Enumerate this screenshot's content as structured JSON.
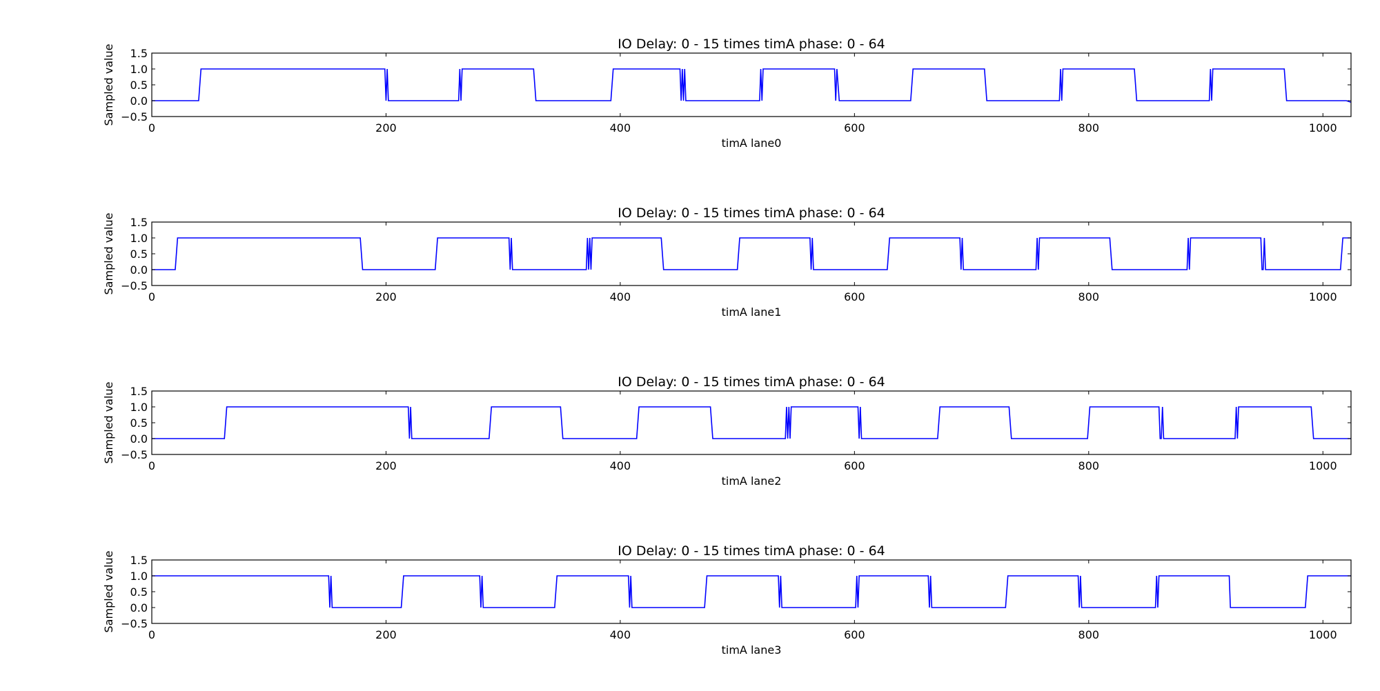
{
  "figure": {
    "background": "#ffffff",
    "line_color": "#0000ff"
  },
  "chart_data": [
    {
      "type": "line",
      "title": "IO Delay: 0 - 15 times timA phase: 0 - 64",
      "xlabel": "timA lane0",
      "ylabel": "Sampled value",
      "xlim": [
        0,
        1024
      ],
      "ylim": [
        -0.5,
        1.5
      ],
      "xticks": [
        0,
        200,
        400,
        600,
        800,
        1000
      ],
      "yticks": [
        -0.5,
        0.0,
        0.5,
        1.0,
        1.5
      ],
      "ytick_labels": [
        "−0.5",
        "0.0",
        "0.5",
        "1.0",
        "1.5"
      ],
      "grid": false,
      "series": [
        {
          "x": [
            0,
            40,
            42,
            199,
            200,
            201,
            202,
            203,
            262,
            263,
            264,
            265,
            326,
            328,
            392,
            394,
            451,
            452,
            453,
            454,
            455,
            456,
            519,
            520,
            521,
            522,
            583,
            584,
            585,
            587,
            648,
            650,
            711,
            713,
            775,
            776,
            777,
            778,
            839,
            841,
            903,
            904,
            905,
            906,
            967,
            969,
            1020,
            1024
          ],
          "y": [
            0,
            0,
            1,
            1,
            0,
            1,
            0,
            0,
            0,
            1,
            0,
            1,
            1,
            0,
            0,
            1,
            1,
            0,
            1,
            0,
            1,
            0,
            0,
            1,
            0,
            1,
            1,
            0,
            1,
            0,
            0,
            1,
            1,
            0,
            0,
            1,
            0,
            1,
            1,
            0,
            0,
            1,
            0,
            1,
            1,
            0,
            0,
            -0.05
          ]
        }
      ]
    },
    {
      "type": "line",
      "title": "IO Delay: 0 - 15 times timA phase: 0 - 64",
      "xlabel": "timA lane1",
      "ylabel": "Sampled value",
      "xlim": [
        0,
        1024
      ],
      "ylim": [
        -0.5,
        1.5
      ],
      "xticks": [
        0,
        200,
        400,
        600,
        800,
        1000
      ],
      "yticks": [
        -0.5,
        0.0,
        0.5,
        1.0,
        1.5
      ],
      "ytick_labels": [
        "−0.5",
        "0.0",
        "0.5",
        "1.0",
        "1.5"
      ],
      "grid": false,
      "series": [
        {
          "x": [
            0,
            20,
            22,
            178,
            180,
            242,
            244,
            305,
            306,
            307,
            308,
            309,
            371,
            372,
            373,
            374,
            375,
            376,
            435,
            437,
            500,
            502,
            562,
            563,
            564,
            565,
            566,
            628,
            630,
            690,
            691,
            692,
            693,
            694,
            755,
            756,
            757,
            758,
            759,
            818,
            820,
            884,
            885,
            886,
            887,
            947,
            948,
            949,
            950,
            951,
            1015,
            1017,
            1024
          ],
          "y": [
            0,
            0,
            1,
            1,
            0,
            0,
            1,
            1,
            0,
            1,
            0,
            0,
            0,
            1,
            0,
            1,
            0,
            1,
            1,
            0,
            0,
            1,
            1,
            0,
            1,
            0,
            0,
            0,
            1,
            1,
            0,
            1,
            0,
            0,
            0,
            1,
            0,
            1,
            1,
            1,
            0,
            0,
            1,
            0,
            1,
            1,
            0,
            0,
            1,
            0,
            0,
            1,
            1
          ]
        }
      ]
    },
    {
      "type": "line",
      "title": "IO Delay: 0 - 15 times timA phase: 0 - 64",
      "xlabel": "timA lane2",
      "ylabel": "Sampled value",
      "xlim": [
        0,
        1024
      ],
      "ylim": [
        -0.5,
        1.5
      ],
      "xticks": [
        0,
        200,
        400,
        600,
        800,
        1000
      ],
      "yticks": [
        -0.5,
        0.0,
        0.5,
        1.0,
        1.5
      ],
      "ytick_labels": [
        "−0.5",
        "0.0",
        "0.5",
        "1.0",
        "1.5"
      ],
      "grid": false,
      "series": [
        {
          "x": [
            0,
            62,
            64,
            219,
            220,
            221,
            222,
            223,
            288,
            290,
            349,
            351,
            414,
            416,
            477,
            479,
            541,
            542,
            543,
            544,
            545,
            546,
            603,
            604,
            605,
            606,
            607,
            671,
            673,
            732,
            734,
            799,
            801,
            860,
            861,
            862,
            863,
            864,
            865,
            925,
            926,
            927,
            928,
            990,
            992,
            1024
          ],
          "y": [
            0,
            0,
            1,
            1,
            0,
            1,
            0,
            0,
            0,
            1,
            1,
            0,
            0,
            1,
            1,
            0,
            0,
            1,
            0,
            1,
            0,
            1,
            1,
            0,
            1,
            0,
            0,
            0,
            1,
            1,
            0,
            0,
            1,
            1,
            0,
            0,
            1,
            0,
            0,
            0,
            1,
            0,
            1,
            1,
            0,
            0
          ]
        }
      ]
    },
    {
      "type": "line",
      "title": "IO Delay: 0 - 15 times timA phase: 0 - 64",
      "xlabel": "timA lane3",
      "ylabel": "Sampled value",
      "xlim": [
        0,
        1024
      ],
      "ylim": [
        -0.5,
        1.5
      ],
      "xticks": [
        0,
        200,
        400,
        600,
        800,
        1000
      ],
      "yticks": [
        -0.5,
        0.0,
        0.5,
        1.0,
        1.5
      ],
      "ytick_labels": [
        "−0.5",
        "0.0",
        "0.5",
        "1.0",
        "1.5"
      ],
      "grid": false,
      "series": [
        {
          "x": [
            0,
            151,
            152,
            153,
            154,
            213,
            215,
            280,
            281,
            282,
            283,
            344,
            346,
            407,
            408,
            409,
            410,
            472,
            474,
            535,
            536,
            537,
            538,
            601,
            602,
            603,
            604,
            663,
            664,
            665,
            666,
            729,
            731,
            791,
            792,
            793,
            794,
            857,
            858,
            859,
            860,
            920,
            921,
            922,
            985,
            987,
            1024
          ],
          "y": [
            1,
            1,
            0,
            1,
            0,
            0,
            1,
            1,
            0,
            1,
            0,
            0,
            1,
            1,
            0,
            1,
            0,
            0,
            1,
            1,
            0,
            1,
            0,
            0,
            1,
            0,
            1,
            1,
            0,
            1,
            0,
            0,
            1,
            1,
            0,
            1,
            0,
            0,
            1,
            0,
            1,
            1,
            0,
            0,
            0,
            1,
            1
          ]
        }
      ]
    }
  ]
}
